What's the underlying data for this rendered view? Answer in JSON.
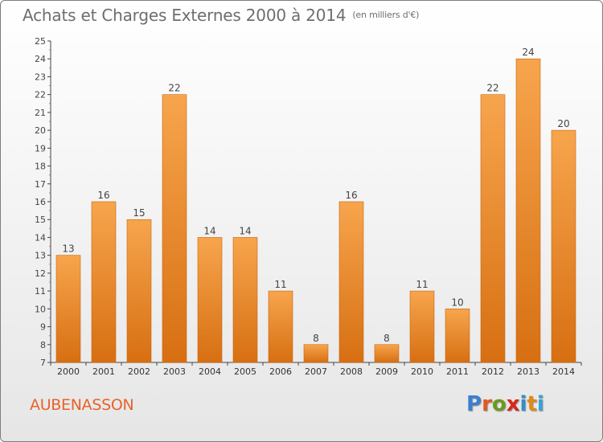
{
  "header": {
    "title": "Achats et Charges Externes 2000 à 2014",
    "unit": "(en milliers d'€)"
  },
  "place_name": "AUBENASSON",
  "logo_text": "Proxiti",
  "colors": {
    "bar_light": "#f7a54d",
    "bar_dark": "#d76f12",
    "title": "#6e6e6e",
    "place": "#e8622a",
    "logo_letters": [
      "#3b7fd0",
      "#e05a21",
      "#6a9a1f",
      "#d9261c",
      "#2f8ed0",
      "#e08a1b",
      "#3aa0d8"
    ]
  },
  "chart_data": {
    "type": "bar",
    "title": "Achats et Charges Externes 2000 à 2014",
    "subtitle": "(en milliers d'€)",
    "categories": [
      "2000",
      "2001",
      "2002",
      "2003",
      "2004",
      "2005",
      "2006",
      "2007",
      "2008",
      "2009",
      "2010",
      "2011",
      "2012",
      "2013",
      "2014"
    ],
    "values": [
      13,
      16,
      15,
      22,
      14,
      14,
      11,
      8,
      16,
      8,
      11,
      10,
      22,
      24,
      20
    ],
    "data_labels": [
      "13",
      "16",
      "15",
      "22",
      "14",
      "14",
      "11",
      "8",
      "16",
      "8",
      "11",
      "10",
      "22",
      "24",
      "20"
    ],
    "ylim": [
      7,
      25
    ],
    "yticks": [
      7,
      8,
      9,
      10,
      11,
      12,
      13,
      14,
      15,
      16,
      17,
      18,
      19,
      20,
      21,
      22,
      23,
      24,
      25
    ],
    "xlabel": "",
    "ylabel": "",
    "grid": false,
    "legend": "none"
  }
}
